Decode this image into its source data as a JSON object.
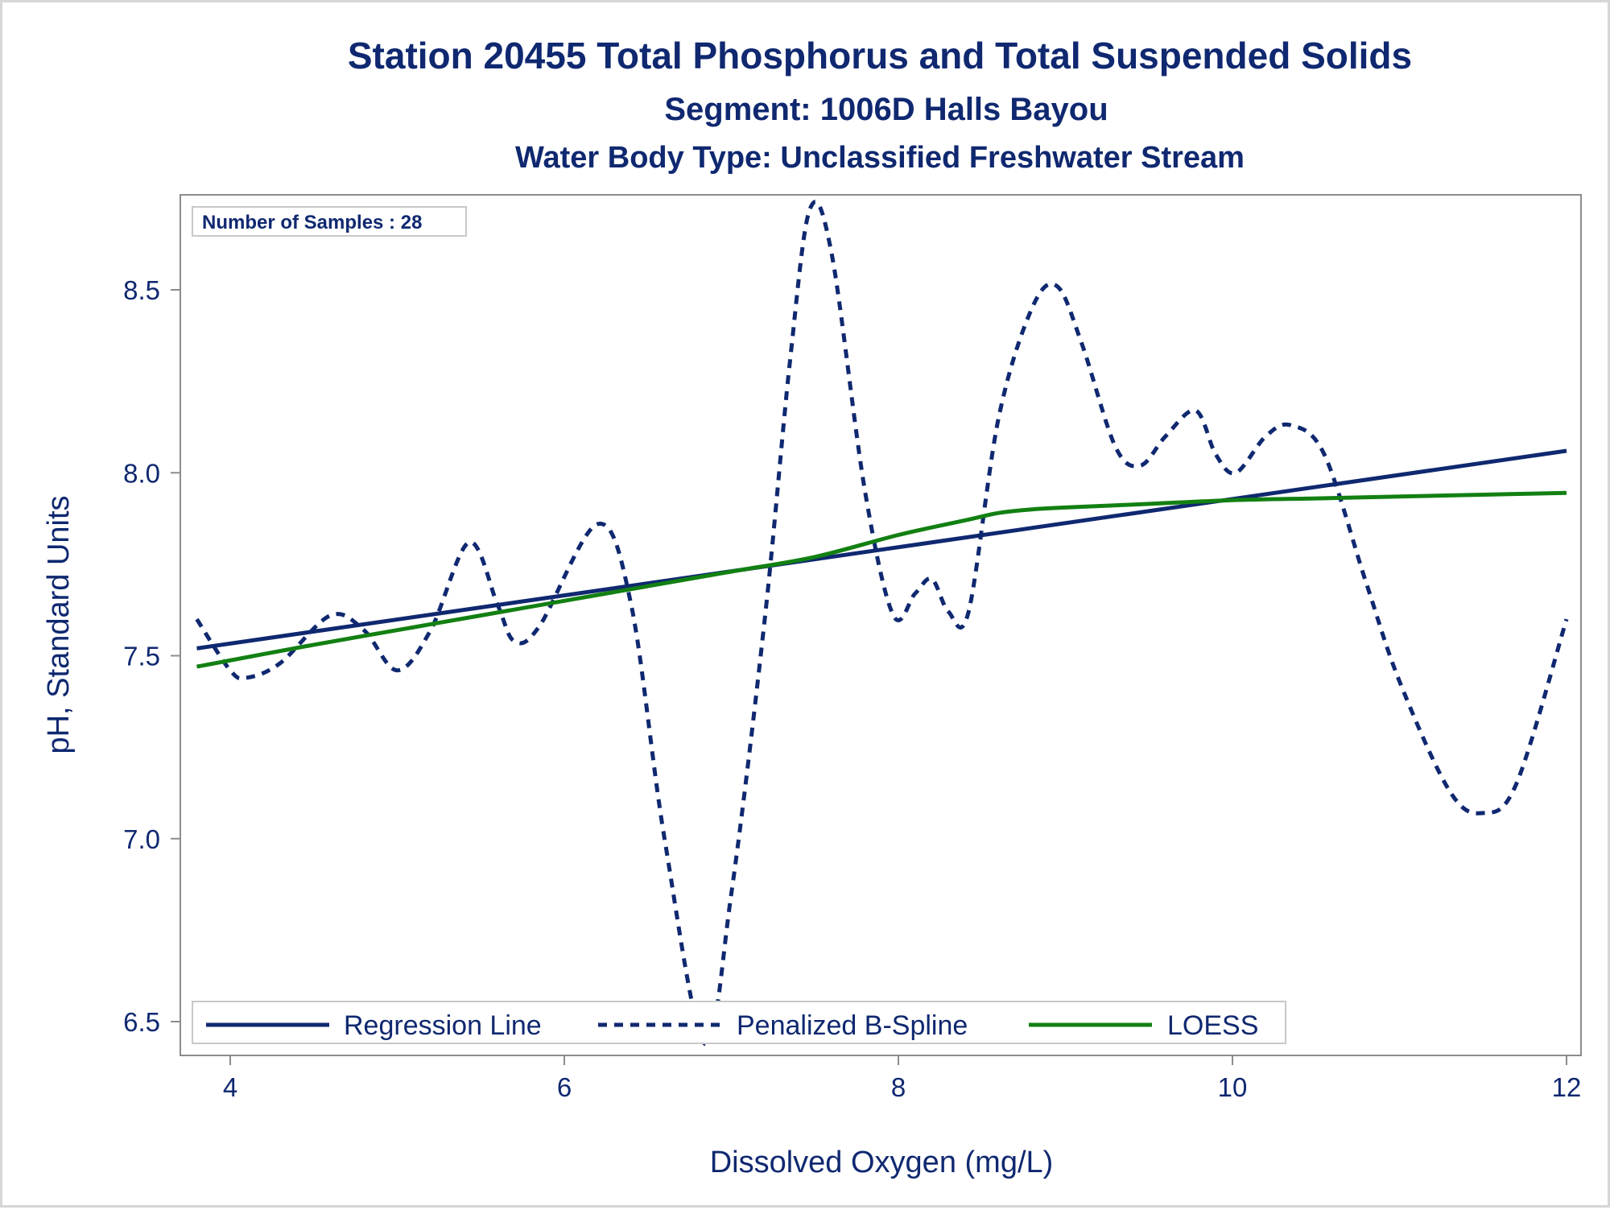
{
  "chart_data": {
    "type": "line",
    "title": "Station 20455  Total Phosphorus and Total Suspended Solids",
    "subtitle": "Segment: 1006D  Halls Bayou",
    "subtitle2": "Water Body Type: Unclassified Freshwater Stream",
    "xlabel": "Dissolved Oxygen (mg/L)",
    "ylabel": "pH, Standard Units",
    "xlim": [
      3.8,
      12.0
    ],
    "ylim": [
      6.44,
      8.73
    ],
    "xticks": [
      "4",
      "6",
      "8",
      "10",
      "12"
    ],
    "yticks": [
      "6.5",
      "7.0",
      "7.5",
      "8.0",
      "8.5"
    ],
    "grid": false,
    "legend_position": "bottom-left inside",
    "annotation": "Number of Samples : 28",
    "series": [
      {
        "name": "Regression Line",
        "style": "solid",
        "color": "#0f2870",
        "x": [
          3.8,
          12.0
        ],
        "y": [
          7.52,
          8.06
        ]
      },
      {
        "name": "Penalized B-Spline",
        "style": "dashed",
        "color": "#0f2870",
        "x": [
          3.8,
          4.0,
          4.1,
          4.3,
          4.6,
          4.8,
          5.0,
          5.2,
          5.43,
          5.6,
          5.7,
          5.85,
          6.2,
          6.4,
          6.6,
          6.84,
          7.0,
          7.2,
          7.35,
          7.47,
          7.6,
          7.8,
          7.97,
          8.1,
          8.2,
          8.3,
          8.42,
          8.6,
          8.8,
          8.95,
          9.1,
          9.3,
          9.45,
          9.6,
          9.78,
          9.9,
          10.02,
          10.2,
          10.35,
          10.55,
          10.8,
          11.0,
          11.3,
          11.5,
          11.7,
          12.0
        ],
        "y": [
          7.6,
          7.46,
          7.44,
          7.48,
          7.61,
          7.57,
          7.46,
          7.57,
          7.81,
          7.64,
          7.54,
          7.58,
          7.86,
          7.64,
          7.0,
          6.44,
          6.85,
          7.6,
          8.3,
          8.72,
          8.6,
          7.95,
          7.61,
          7.67,
          7.71,
          7.62,
          7.62,
          8.15,
          8.45,
          8.51,
          8.35,
          8.07,
          8.02,
          8.1,
          8.17,
          8.05,
          8.0,
          8.1,
          8.13,
          8.05,
          7.7,
          7.43,
          7.13,
          7.07,
          7.15,
          7.6
        ]
      },
      {
        "name": "LOESS",
        "style": "solid",
        "color": "#128012",
        "x": [
          3.8,
          4.5,
          5.0,
          5.5,
          6.0,
          6.5,
          7.0,
          7.5,
          8.0,
          8.4,
          8.6,
          8.8,
          9.0,
          9.5,
          10.0,
          10.5,
          11.0,
          11.5,
          12.0
        ],
        "y": [
          7.47,
          7.53,
          7.57,
          7.61,
          7.65,
          7.69,
          7.73,
          7.77,
          7.83,
          7.87,
          7.89,
          7.9,
          7.905,
          7.915,
          7.925,
          7.93,
          7.935,
          7.94,
          7.945
        ]
      }
    ]
  }
}
